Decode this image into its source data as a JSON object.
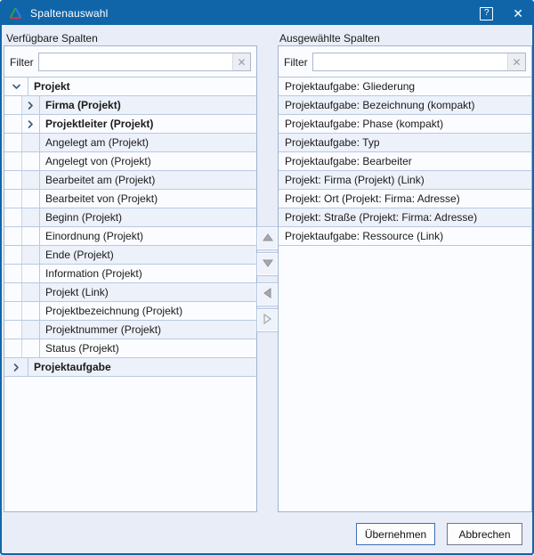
{
  "window": {
    "title": "Spaltenauswahl"
  },
  "titlebar": {
    "help_label": "?",
    "close_label": "✕"
  },
  "panels": {
    "available": {
      "label": "Verfügbare Spalten",
      "filter_label": "Filter",
      "filter_value": "",
      "clear_label": "✕",
      "tree": [
        {
          "label": "Projekt",
          "bold": true,
          "level": 0,
          "expander": "down"
        },
        {
          "label": "Firma (Projekt)",
          "bold": true,
          "level": 1,
          "expander": "right"
        },
        {
          "label": "Projektleiter (Projekt)",
          "bold": true,
          "level": 1,
          "expander": "right"
        },
        {
          "label": "Angelegt am (Projekt)",
          "bold": false,
          "level": 1,
          "expander": "none"
        },
        {
          "label": "Angelegt von (Projekt)",
          "bold": false,
          "level": 1,
          "expander": "none"
        },
        {
          "label": "Bearbeitet am (Projekt)",
          "bold": false,
          "level": 1,
          "expander": "none"
        },
        {
          "label": "Bearbeitet von (Projekt)",
          "bold": false,
          "level": 1,
          "expander": "none"
        },
        {
          "label": "Beginn (Projekt)",
          "bold": false,
          "level": 1,
          "expander": "none"
        },
        {
          "label": "Einordnung (Projekt)",
          "bold": false,
          "level": 1,
          "expander": "none"
        },
        {
          "label": "Ende (Projekt)",
          "bold": false,
          "level": 1,
          "expander": "none"
        },
        {
          "label": "Information (Projekt)",
          "bold": false,
          "level": 1,
          "expander": "none"
        },
        {
          "label": "Projekt (Link)",
          "bold": false,
          "level": 1,
          "expander": "none"
        },
        {
          "label": "Projektbezeichnung (Projekt)",
          "bold": false,
          "level": 1,
          "expander": "none"
        },
        {
          "label": "Projektnummer (Projekt)",
          "bold": false,
          "level": 1,
          "expander": "none"
        },
        {
          "label": "Status (Projekt)",
          "bold": false,
          "level": 1,
          "expander": "none"
        },
        {
          "label": "Projektaufgabe",
          "bold": true,
          "level": 0,
          "expander": "right"
        }
      ]
    },
    "selected": {
      "label": "Ausgewählte Spalten",
      "filter_label": "Filter",
      "filter_value": "",
      "clear_label": "✕",
      "items": [
        {
          "label": "Projektaufgabe: Gliederung"
        },
        {
          "label": "Projektaufgabe: Bezeichnung (kompakt)"
        },
        {
          "label": "Projektaufgabe: Phase (kompakt)"
        },
        {
          "label": "Projektaufgabe: Typ"
        },
        {
          "label": "Projektaufgabe: Bearbeiter"
        },
        {
          "label": "Projekt: Firma (Projekt) (Link)"
        },
        {
          "label": "Projekt: Ort (Projekt: Firma: Adresse)"
        },
        {
          "label": "Projekt: Straße (Projekt: Firma: Adresse)"
        },
        {
          "label": "Projektaufgabe: Ressource (Link)"
        }
      ]
    }
  },
  "transfer_buttons": [
    {
      "icon": "triangle-up-icon",
      "action": "move-up"
    },
    {
      "icon": "triangle-down-icon",
      "action": "move-down"
    },
    {
      "icon": "triangle-left-icon",
      "action": "move-remove"
    },
    {
      "icon": "triangle-right-icon",
      "action": "move-add"
    }
  ],
  "footer": {
    "apply_label": "Übernehmen",
    "cancel_label": "Abbrechen"
  },
  "colors": {
    "titlebar": "#1065a9",
    "dialog_bg": "#e8edf8",
    "row_alt": "#ecf1fa",
    "row_line": "#bac9e0",
    "apply_border": "#3f6eb5",
    "cancel_border": "#6e7987"
  }
}
